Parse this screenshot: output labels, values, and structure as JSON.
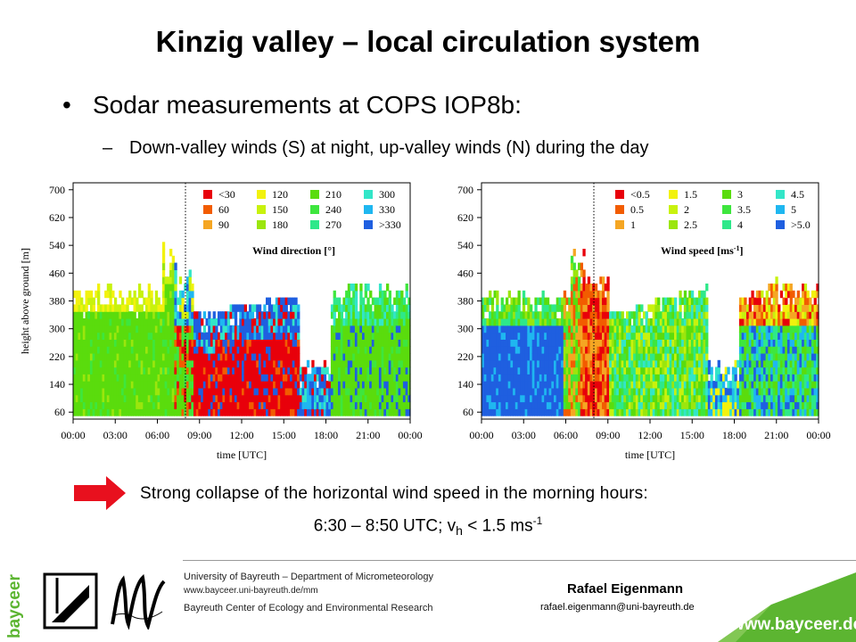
{
  "slide": {
    "title": "Kinzig valley – local circulation system",
    "bullet": "Sodar measurements at COPS IOP8b:",
    "sub_bullet": "Down-valley winds (S) at night, up-valley winds (N) during the day",
    "conclusion_line1": "Strong collapse of the horizontal wind speed in the morning hours:",
    "conclusion_line2_prefix": "6:30 – 8:50 UTC; v",
    "conclusion_sub": "h",
    "conclusion_mid": " < 1.5 ms",
    "conclusion_sup": "-1"
  },
  "chart_data": [
    {
      "type": "heatmap",
      "title": "Wind direction [°]",
      "xlabel": "time [UTC]",
      "ylabel": "height above ground [m]",
      "x_ticks": [
        "00:00",
        "03:00",
        "06:00",
        "09:00",
        "12:00",
        "15:00",
        "18:00",
        "21:00",
        "00:00"
      ],
      "y_ticks": [
        "60",
        "140",
        "220",
        "300",
        "380",
        "460",
        "540",
        "620",
        "700"
      ],
      "legend": [
        "<30",
        "60",
        "90",
        "120",
        "150",
        "180",
        "210",
        "240",
        "270",
        "300",
        "330",
        ">330"
      ],
      "legend_colors": [
        "#e8000b",
        "#f25c00",
        "#f5a623",
        "#f2f20d",
        "#c8f20d",
        "#9be60d",
        "#5adc0d",
        "#3ee63e",
        "#2ee88a",
        "#33e6c8",
        "#1fb7f0",
        "#1f5fe0"
      ],
      "marker_time": "08:00"
    },
    {
      "type": "heatmap",
      "title": "Wind speed [ms-1]",
      "title_main": "Wind speed [ms",
      "title_sup": "-1",
      "title_end": "]",
      "xlabel": "time [UTC]",
      "ylabel": "",
      "x_ticks": [
        "00:00",
        "03:00",
        "06:00",
        "09:00",
        "12:00",
        "15:00",
        "18:00",
        "21:00",
        "00:00"
      ],
      "y_ticks": [
        "60",
        "140",
        "220",
        "300",
        "380",
        "460",
        "540",
        "620",
        "700"
      ],
      "legend": [
        "<0.5",
        "0.5",
        "1",
        "1.5",
        "2",
        "2.5",
        "3",
        "3.5",
        "4",
        "4.5",
        "5",
        ">5.0"
      ],
      "legend_colors": [
        "#e8000b",
        "#f25c00",
        "#f5a623",
        "#f2f20d",
        "#c8f20d",
        "#9be60d",
        "#5adc0d",
        "#3ee63e",
        "#2ee88a",
        "#33e6c8",
        "#1fb7f0",
        "#1f5fe0"
      ],
      "marker_time": "08:00"
    }
  ],
  "footer": {
    "org_line1": "University of Bayreuth – Department of Micrometeorology",
    "org_line2": "www.bayceer.uni-bayreuth.de/mm",
    "org_line3": "Bayreuth Center of Ecology and Environmental Research",
    "author": "Rafael Eigenmann",
    "email": "rafael.eigenmann@uni-bayreuth.de",
    "site": "www.bayceer.de",
    "side_logo": "bayceer",
    "accent_color": "#5cb531"
  }
}
